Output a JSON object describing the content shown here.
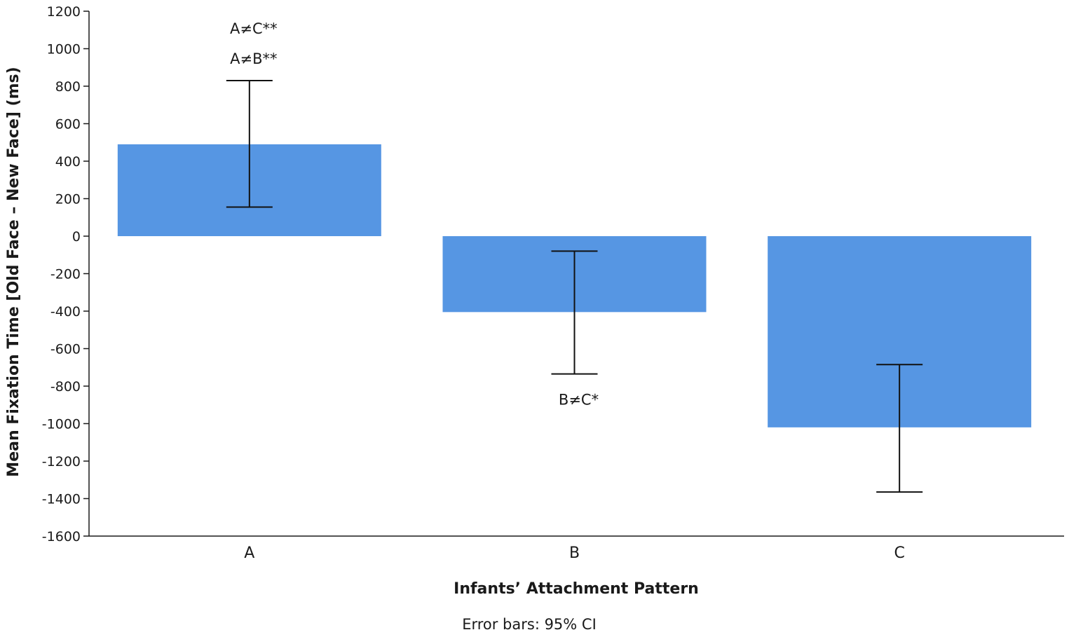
{
  "chart_data": {
    "type": "bar",
    "title": "",
    "xlabel": "Infants’ Attachment Pattern",
    "ylabel": "Mean Fixation Time [Old Face – New Face] (ms)",
    "categories": [
      "A",
      "B",
      "C"
    ],
    "values": [
      490,
      -405,
      -1020
    ],
    "error_low": [
      155,
      -735,
      -1365
    ],
    "error_high": [
      830,
      -80,
      -685
    ],
    "ylim": [
      -1600,
      1200
    ],
    "yticks": [
      1200,
      1000,
      800,
      600,
      400,
      200,
      0,
      -200,
      -400,
      -600,
      -800,
      -1000,
      -1200,
      -1400,
      -1600
    ],
    "bar_color": "#5696e3",
    "grid": false,
    "annotations": [
      {
        "text": "A≠C**",
        "category": "A",
        "y": 1110
      },
      {
        "text": "A≠B**",
        "category": "A",
        "y": 950
      },
      {
        "text": "B≠C*",
        "category": "B",
        "y": -870
      }
    ],
    "note": "Error bars: 95% CI"
  }
}
